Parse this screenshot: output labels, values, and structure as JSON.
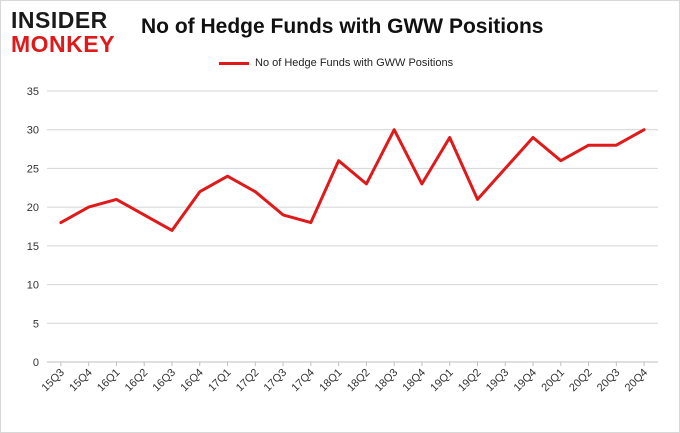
{
  "logo": {
    "line1": "INSIDER",
    "line2": "MONKEY"
  },
  "chart_data": {
    "type": "line",
    "title": "No of Hedge Funds with GWW Positions",
    "xlabel": "",
    "ylabel": "",
    "categories": [
      "15Q3",
      "15Q4",
      "16Q1",
      "16Q2",
      "16Q3",
      "16Q4",
      "17Q1",
      "17Q2",
      "17Q3",
      "17Q4",
      "18Q1",
      "18Q2",
      "18Q3",
      "18Q4",
      "19Q1",
      "19Q2",
      "19Q3",
      "19Q4",
      "20Q1",
      "20Q2",
      "20Q3",
      "20Q4"
    ],
    "series": [
      {
        "name": "No of Hedge Funds with GWW Positions",
        "color": "#e0191a",
        "values": [
          18,
          20,
          21,
          19,
          17,
          22,
          24,
          22,
          19,
          18,
          26,
          23,
          30,
          23,
          29,
          21,
          25,
          29,
          26,
          28,
          28,
          30
        ]
      }
    ],
    "ylim": [
      0,
      35
    ],
    "yticks": [
      0,
      5,
      10,
      15,
      20,
      25,
      30,
      35
    ],
    "grid": true,
    "legend": "top-center"
  }
}
